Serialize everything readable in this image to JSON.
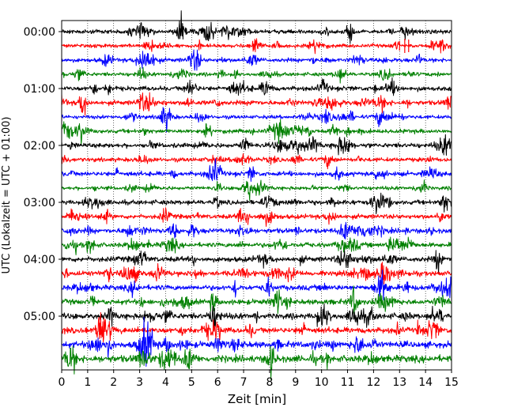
{
  "chart_data": {
    "type": "line",
    "title": "",
    "xlabel": "Zeit  [min]",
    "ylabel": "UTC (Lokalzeit = UTC + 01:00)",
    "xlim": [
      0,
      15
    ],
    "x_ticks": [
      "0",
      "1",
      "2",
      "3",
      "4",
      "5",
      "6",
      "7",
      "8",
      "9",
      "10",
      "11",
      "12",
      "13",
      "14",
      "15"
    ],
    "grid": "vertical dotted at each minute",
    "y_tick_labels": [
      "00:00",
      "01:00",
      "02:00",
      "03:00",
      "04:00",
      "05:00"
    ],
    "trace_color_cycle": [
      "#000000",
      "#ff0000",
      "#0000ff",
      "#008000"
    ],
    "traces": [
      {
        "time": "00:00",
        "amplitude": 0.25
      },
      {
        "time": "00:15",
        "amplitude": 0.22
      },
      {
        "time": "00:30",
        "amplitude": 0.25
      },
      {
        "time": "00:45",
        "amplitude": 0.22
      },
      {
        "time": "01:00",
        "amplitude": 0.28
      },
      {
        "time": "01:15",
        "amplitude": 0.28
      },
      {
        "time": "01:30",
        "amplitude": 0.22
      },
      {
        "time": "01:45",
        "amplitude": 0.25
      },
      {
        "time": "02:00",
        "amplitude": 0.28
      },
      {
        "time": "02:15",
        "amplitude": 0.25
      },
      {
        "time": "02:30",
        "amplitude": 0.28
      },
      {
        "time": "02:45",
        "amplitude": 0.22
      },
      {
        "time": "03:00",
        "amplitude": 0.28
      },
      {
        "time": "03:15",
        "amplitude": 0.28
      },
      {
        "time": "03:30",
        "amplitude": 0.3
      },
      {
        "time": "03:45",
        "amplitude": 0.28
      },
      {
        "time": "04:00",
        "amplitude": 0.32
      },
      {
        "time": "04:15",
        "amplitude": 0.3
      },
      {
        "time": "04:30",
        "amplitude": 0.32
      },
      {
        "time": "04:45",
        "amplitude": 0.32
      },
      {
        "time": "05:00",
        "amplitude": 0.35
      },
      {
        "time": "05:15",
        "amplitude": 0.35
      },
      {
        "time": "05:30",
        "amplitude": 0.38
      },
      {
        "time": "05:45",
        "amplitude": 0.42
      }
    ]
  }
}
